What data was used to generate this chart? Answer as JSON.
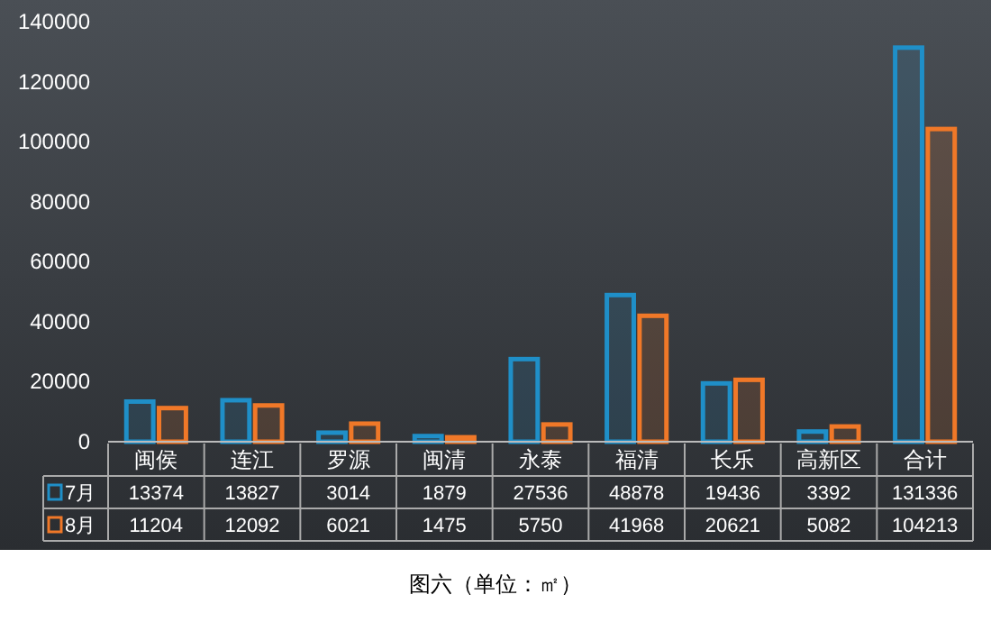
{
  "chart_data": {
    "type": "bar",
    "categories": [
      "闽侯",
      "连江",
      "罗源",
      "闽清",
      "永泰",
      "福清",
      "长乐",
      "高新区",
      "合计"
    ],
    "series": [
      {
        "name": "7月",
        "color": "#1f8fc8",
        "values": [
          13374,
          13827,
          3014,
          1879,
          27536,
          48878,
          19436,
          3392,
          131336
        ]
      },
      {
        "name": "8月",
        "color": "#f07828",
        "values": [
          11204,
          12092,
          6021,
          1475,
          5750,
          41968,
          20621,
          5082,
          104213
        ]
      }
    ],
    "ylim": [
      0,
      140000
    ],
    "yticks": [
      0,
      20000,
      40000,
      60000,
      80000,
      100000,
      120000,
      140000
    ],
    "data_labels": true,
    "legend": "bottom left",
    "annotations": [
      "图六（单位：㎡）"
    ]
  }
}
